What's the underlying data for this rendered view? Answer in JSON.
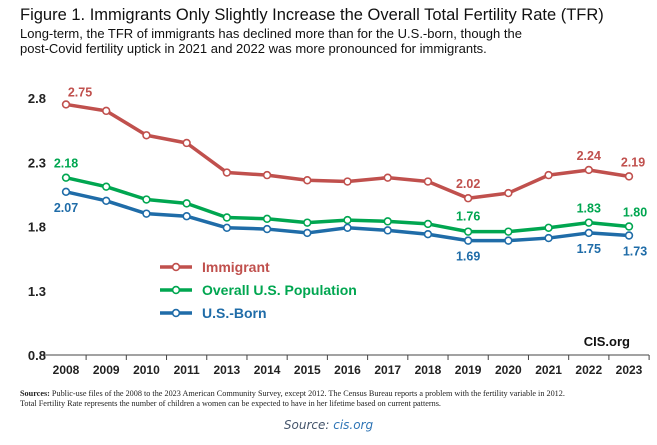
{
  "figure": {
    "title": "Figure 1. Immigrants Only Slightly Increase the Overall Total Fertility Rate (TFR)",
    "subtitle_line1": "Long-term, the TFR of immigrants has declined more than for the U.S.-born, though the",
    "subtitle_line2": "post-Covid fertility uptick in 2021 and 2022 was more pronounced for immigrants.",
    "watermark": "CIS.org",
    "sources_label": "Sources:",
    "sources_line1": "Public-use files of the 2008 to the 2023 American Community Survey, except 2012. The Census Bureau reports a problem with the fertility variable in 2012.",
    "sources_line2": "Total Fertility Rate represents the number of children a women can be expected to have in her lifetime based on current patterns."
  },
  "caption": {
    "label": "Source: ",
    "link": "cis.org"
  },
  "chart_data": {
    "type": "line",
    "x": [
      "2008",
      "2009",
      "2010",
      "2011",
      "2013",
      "2014",
      "2015",
      "2016",
      "2017",
      "2018",
      "2019",
      "2020",
      "2021",
      "2022",
      "2023"
    ],
    "y_ticks": [
      "2.8",
      "2.3",
      "1.8",
      "1.3",
      "0.8"
    ],
    "ylim": [
      0.8,
      2.8
    ],
    "grid": false,
    "legend_position": "middle-left",
    "series": [
      {
        "name": "Immigrant",
        "color": "#c0504d",
        "values": [
          2.75,
          2.7,
          2.51,
          2.45,
          2.22,
          2.2,
          2.16,
          2.15,
          2.18,
          2.15,
          2.02,
          2.06,
          2.2,
          2.24,
          2.19
        ],
        "labels": [
          {
            "index": 0,
            "text": "2.75"
          },
          {
            "index": 10,
            "text": "2.02"
          },
          {
            "index": 13,
            "text": "2.24"
          },
          {
            "index": 14,
            "text": "2.19"
          }
        ]
      },
      {
        "name": "Overall U.S. Population",
        "color": "#00a650",
        "values": [
          2.18,
          2.11,
          2.01,
          1.98,
          1.87,
          1.86,
          1.83,
          1.85,
          1.84,
          1.82,
          1.76,
          1.76,
          1.79,
          1.83,
          1.8
        ],
        "labels": [
          {
            "index": 0,
            "text": "2.18"
          },
          {
            "index": 10,
            "text": "1.76"
          },
          {
            "index": 13,
            "text": "1.83"
          },
          {
            "index": 14,
            "text": "1.80"
          }
        ]
      },
      {
        "name": "U.S.-Born",
        "color": "#1f6ca8",
        "values": [
          2.07,
          2.0,
          1.9,
          1.88,
          1.79,
          1.78,
          1.75,
          1.79,
          1.77,
          1.74,
          1.69,
          1.69,
          1.71,
          1.75,
          1.73
        ],
        "labels": [
          {
            "index": 0,
            "text": "2.07"
          },
          {
            "index": 10,
            "text": "1.69"
          },
          {
            "index": 13,
            "text": "1.75"
          },
          {
            "index": 14,
            "text": "1.73"
          }
        ]
      }
    ]
  }
}
